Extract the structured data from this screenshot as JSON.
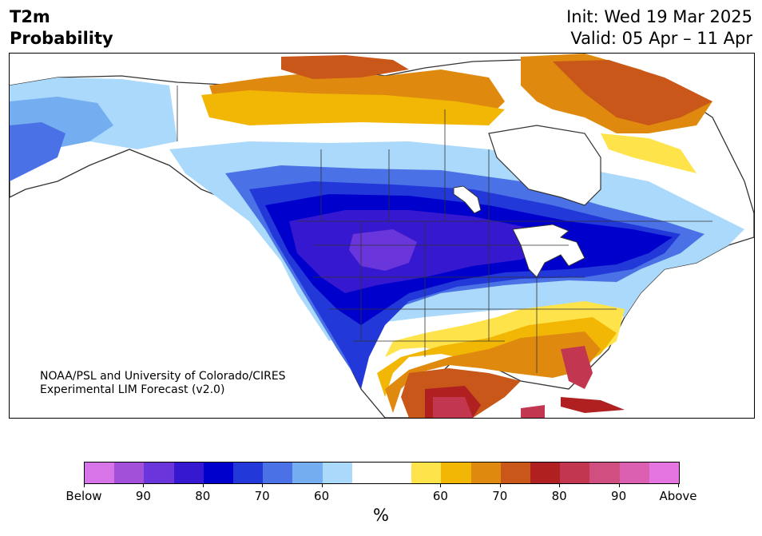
{
  "title": {
    "line1": "T2m",
    "line2": "Probability"
  },
  "dates": {
    "init": "Init: Wed 19 Mar 2025",
    "valid": "Valid: 05 Apr – 11 Apr"
  },
  "credit": {
    "line1": "NOAA/PSL and University of Colorado/CIRES",
    "line2": "Experimental LIM Forecast (v2.0)"
  },
  "colorbar": {
    "colors": [
      "#d774e8",
      "#a24fd9",
      "#6a36dc",
      "#3518cf",
      "#0000cc",
      "#2238d8",
      "#4a72e6",
      "#74aef0",
      "#aad9fb",
      "#ffffff",
      "#ffffff",
      "#ffe34a",
      "#f2b705",
      "#df8a0f",
      "#c9571a",
      "#b02020",
      "#c33650",
      "#d04f80",
      "#db60b2",
      "#e575e0"
    ],
    "labels": [
      "Below",
      "90",
      "80",
      "70",
      "60",
      "60",
      "70",
      "80",
      "90",
      "Above"
    ],
    "unit": "%"
  },
  "legend_colors": {
    "below_strong": "#3518cf",
    "below_weak": "#aad9fb",
    "above_weak": "#ffe34a",
    "above_strong": "#b02020"
  }
}
